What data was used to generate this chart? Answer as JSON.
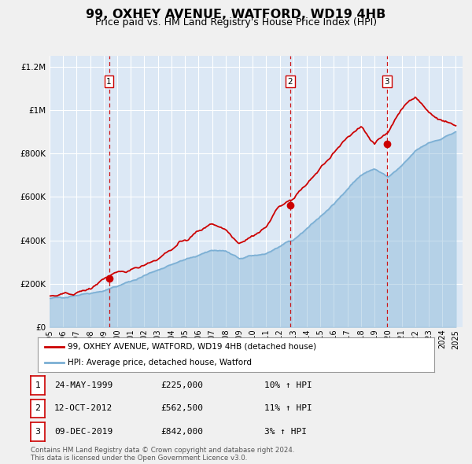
{
  "title": "99, OXHEY AVENUE, WATFORD, WD19 4HB",
  "subtitle": "Price paid vs. HM Land Registry's House Price Index (HPI)",
  "title_fontsize": 11.5,
  "subtitle_fontsize": 9,
  "bg_color": "#f0f0f0",
  "plot_bg_color": "#dce8f5",
  "grid_color": "#ffffff",
  "red_color": "#cc0000",
  "blue_color": "#7bafd4",
  "blue_fill_alpha": 0.4,
  "ylim": [
    0,
    1250000
  ],
  "yticks": [
    0,
    200000,
    400000,
    600000,
    800000,
    1000000,
    1200000
  ],
  "ytick_labels": [
    "£0",
    "£200K",
    "£400K",
    "£600K",
    "£800K",
    "£1M",
    "£1.2M"
  ],
  "xlim_start": 1995.0,
  "xlim_end": 2025.5,
  "xticks": [
    1995,
    1996,
    1997,
    1998,
    1999,
    2000,
    2001,
    2002,
    2003,
    2004,
    2005,
    2006,
    2007,
    2008,
    2009,
    2010,
    2011,
    2012,
    2013,
    2014,
    2015,
    2016,
    2017,
    2018,
    2019,
    2020,
    2021,
    2022,
    2023,
    2024,
    2025
  ],
  "sale_dates": [
    1999.39,
    2012.78,
    2019.92
  ],
  "sale_prices": [
    225000,
    562500,
    842000
  ],
  "sale_labels": [
    "1",
    "2",
    "3"
  ],
  "vline_color": "#cc0000",
  "dot_color": "#cc0000",
  "legend_address": "99, OXHEY AVENUE, WATFORD, WD19 4HB (detached house)",
  "legend_hpi": "HPI: Average price, detached house, Watford",
  "table_entries": [
    {
      "num": "1",
      "date": "24-MAY-1999",
      "price": "£225,000",
      "hpi": "10% ↑ HPI"
    },
    {
      "num": "2",
      "date": "12-OCT-2012",
      "price": "£562,500",
      "hpi": "11% ↑ HPI"
    },
    {
      "num": "3",
      "date": "09-DEC-2019",
      "price": "£842,000",
      "hpi": "3% ↑ HPI"
    }
  ],
  "footer": "Contains HM Land Registry data © Crown copyright and database right 2024.\nThis data is licensed under the Open Government Licence v3.0.",
  "hpi_anchors_x": [
    1995,
    1997,
    1999,
    2001,
    2003,
    2005,
    2007,
    2008,
    2009,
    2011,
    2012,
    2013,
    2014,
    2015,
    2016,
    2017,
    2018,
    2019,
    2020,
    2021,
    2022,
    2023,
    2024,
    2025
  ],
  "hpi_anchors_y": [
    130000,
    148000,
    168000,
    210000,
    265000,
    310000,
    355000,
    350000,
    315000,
    340000,
    370000,
    400000,
    455000,
    510000,
    565000,
    640000,
    700000,
    730000,
    690000,
    740000,
    810000,
    850000,
    870000,
    900000
  ],
  "pp_anchors_x": [
    1995,
    1996,
    1997,
    1998,
    1999,
    2000,
    2001,
    2002,
    2003,
    2004,
    2005,
    2006,
    2007,
    2008,
    2009,
    2010,
    2011,
    2012,
    2013,
    2014,
    2015,
    2016,
    2017,
    2018,
    2019,
    2020,
    2021,
    2022,
    2023,
    2024,
    2025
  ],
  "pp_anchors_y": [
    140000,
    148000,
    158000,
    175000,
    225000,
    245000,
    265000,
    290000,
    315000,
    360000,
    400000,
    440000,
    480000,
    450000,
    390000,
    420000,
    460000,
    562500,
    590000,
    660000,
    730000,
    800000,
    870000,
    930000,
    842000,
    900000,
    1010000,
    1060000,
    990000,
    950000,
    930000
  ]
}
